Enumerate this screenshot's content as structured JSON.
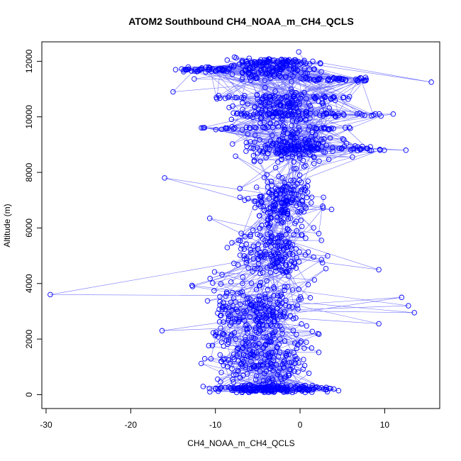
{
  "chart_data": {
    "type": "scatter",
    "title": "ATOM2 Southbound CH4_NOAA_m_CH4_QCLS",
    "xlabel": "CH4_NOAA_m_CH4_QCLS",
    "ylabel": "Altitude (m)",
    "xlim": [
      -30.5,
      16.5
    ],
    "ylim": [
      -500,
      12700
    ],
    "x_ticks": [
      -30,
      -20,
      -10,
      0,
      10
    ],
    "y_ticks": [
      0,
      2000,
      4000,
      6000,
      8000,
      10000,
      12000
    ],
    "point_color": "#0000ff",
    "line_color": "#0000ff",
    "series": [
      {
        "name": "CH4_NOAA_m_CH4_QCLS",
        "style": "points+lines",
        "n_points": 1400,
        "random_seed": 20817,
        "clusters": [
          {
            "x": -3.5,
            "y": 200,
            "dx": 5.0,
            "dy": 120,
            "n": 160
          },
          {
            "x": -4.0,
            "y": 1200,
            "dx": 4.5,
            "dy": 900,
            "n": 180
          },
          {
            "x": -4.5,
            "y": 3000,
            "dx": 4.5,
            "dy": 1000,
            "n": 190
          },
          {
            "x": -3.0,
            "y": 5200,
            "dx": 4.0,
            "dy": 900,
            "n": 170
          },
          {
            "x": -2.0,
            "y": 7000,
            "dx": 3.5,
            "dy": 900,
            "n": 170
          },
          {
            "x": -1.0,
            "y": 8900,
            "dx": 4.5,
            "dy": 500,
            "n": 170
          },
          {
            "x": -2.0,
            "y": 10300,
            "dx": 4.5,
            "dy": 600,
            "n": 150
          },
          {
            "x": -4.0,
            "y": 11700,
            "dx": 5.0,
            "dy": 350,
            "n": 140
          },
          {
            "x": -9.0,
            "y": 2500,
            "dx": 3.0,
            "dy": 2200,
            "n": 70
          }
        ],
        "extreme_points": [
          {
            "x": -29.5,
            "y": 3600
          },
          {
            "x": 15.5,
            "y": 11250
          },
          {
            "x": 13.5,
            "y": 2950
          },
          {
            "x": 12.5,
            "y": 8800
          },
          {
            "x": 12.8,
            "y": 3200
          },
          {
            "x": 9.3,
            "y": 2550
          },
          {
            "x": -16.3,
            "y": 2300
          },
          {
            "x": -16.0,
            "y": 7800
          },
          {
            "x": -14.7,
            "y": 11700
          },
          {
            "x": -15.0,
            "y": 10900
          },
          {
            "x": 11.0,
            "y": 10100
          },
          {
            "x": 9.3,
            "y": 4500
          },
          {
            "x": 12.0,
            "y": 3500
          },
          {
            "x": 4.0,
            "y": 200
          },
          {
            "x": 1.5,
            "y": 12000
          }
        ]
      }
    ]
  }
}
